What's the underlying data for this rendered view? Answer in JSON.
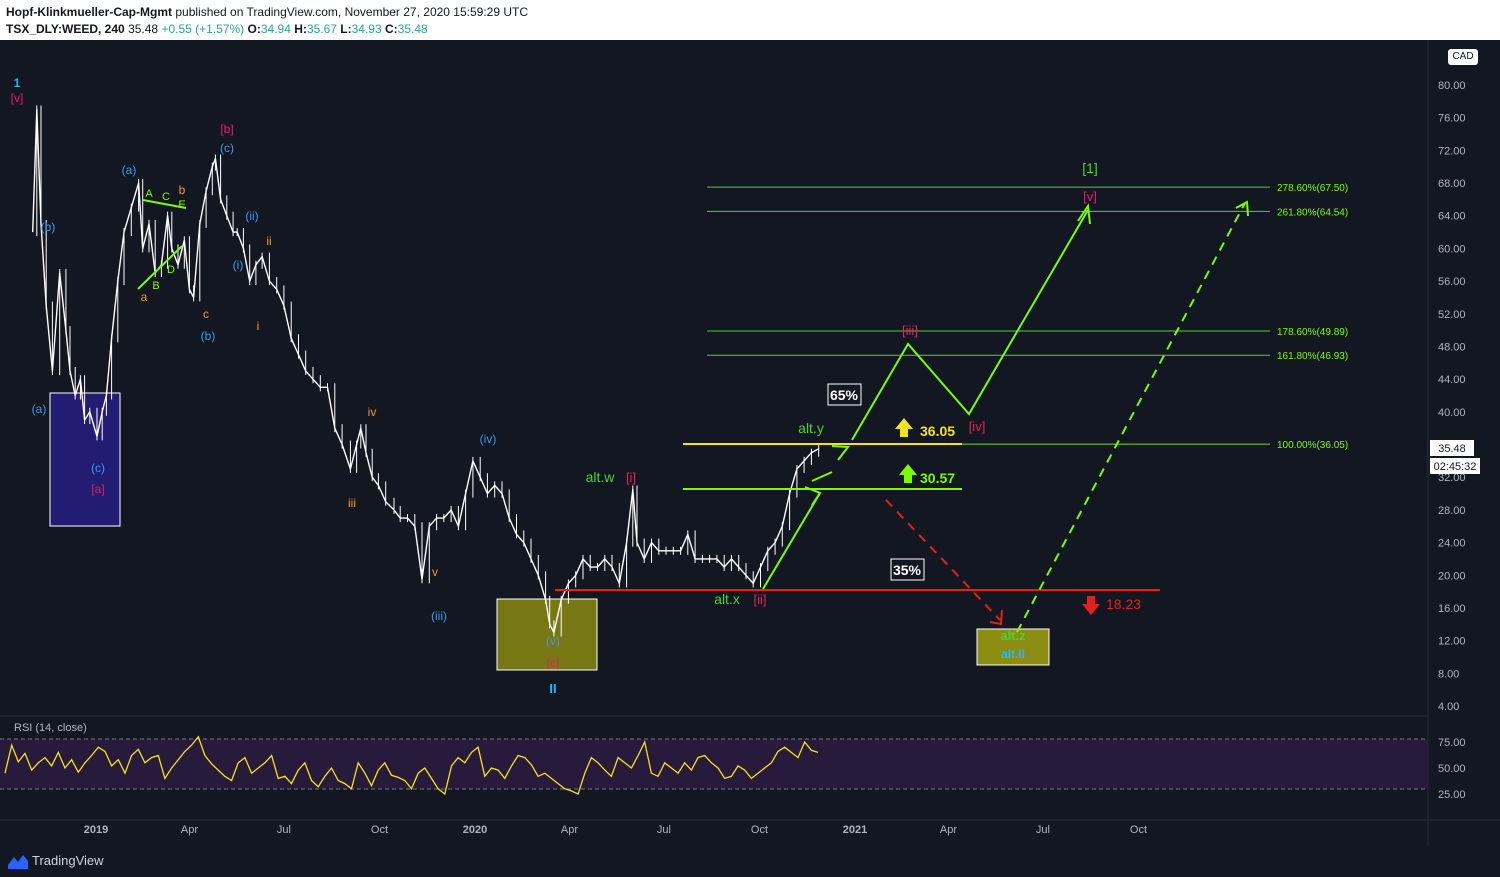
{
  "header": {
    "publisher": "Hopf-Klinkmueller-Cap-Mgmt",
    "published_text": "published on TradingView.com, November 27, 2020 15:59:29 UTC",
    "symbol": "TSX_DLY:WEED, 240",
    "last": "35.48",
    "change": "+0.55 (+1.57%)",
    "o_label": "O:",
    "o": "34.94",
    "h_label": "H:",
    "h": "35.67",
    "l_label": "L:",
    "l": "34.93",
    "c_label": "C:",
    "c": "35.48"
  },
  "currency": "CAD",
  "footer": {
    "brand": "TradingView"
  },
  "colors": {
    "background": "#131722",
    "candle": "#ffffff",
    "fib": "#4cd137",
    "green": "#7cfc00",
    "yellow": "#f5e21b",
    "red": "#e3201b",
    "pink": "#e91e63",
    "blue": "#3d9bf0",
    "orange": "#f39c12",
    "cyan": "#29b6f6"
  },
  "chart_data": {
    "type": "line",
    "title": "",
    "y_axis": {
      "min": 4,
      "max": 84,
      "unit": "CAD",
      "ticks": [
        "80.00",
        "76.00",
        "72.00",
        "68.00",
        "64.00",
        "60.00",
        "56.00",
        "52.00",
        "48.00",
        "44.00",
        "40.00",
        "36.00",
        "32.00",
        "28.00",
        "24.00",
        "20.00",
        "16.00",
        "12.00",
        "8.00",
        "4.00"
      ]
    },
    "x_axis": {
      "ticks": [
        "2019",
        "Apr",
        "Jul",
        "Oct",
        "2020",
        "Apr",
        "Jul",
        "Oct",
        "2021",
        "Apr",
        "Jul",
        "Oct"
      ]
    },
    "series": [
      {
        "points": [
          [
            "2018-11-01",
            62
          ],
          [
            "2018-11-05",
            77
          ],
          [
            "2018-11-09",
            63
          ],
          [
            "2018-11-14",
            53
          ],
          [
            "2018-11-20",
            45
          ],
          [
            "2018-11-27",
            57
          ],
          [
            "2018-12-03",
            50
          ],
          [
            "2018-12-07",
            45
          ],
          [
            "2018-12-12",
            42
          ],
          [
            "2018-12-17",
            44
          ],
          [
            "2018-12-21",
            39
          ],
          [
            "2018-12-26",
            40
          ],
          [
            "2019-01-02",
            37
          ],
          [
            "2019-01-07",
            40
          ],
          [
            "2019-01-11",
            42
          ],
          [
            "2019-01-16",
            49
          ],
          [
            "2019-01-22",
            56
          ],
          [
            "2019-01-28",
            62
          ],
          [
            "2019-02-04",
            65
          ],
          [
            "2019-02-11",
            68
          ],
          [
            "2019-02-15",
            60
          ],
          [
            "2019-02-21",
            63
          ],
          [
            "2019-02-27",
            57
          ],
          [
            "2019-03-05",
            58
          ],
          [
            "2019-03-11",
            64
          ],
          [
            "2019-03-15",
            60
          ],
          [
            "2019-03-21",
            58
          ],
          [
            "2019-03-27",
            61
          ],
          [
            "2019-04-01",
            55
          ],
          [
            "2019-04-05",
            54
          ],
          [
            "2019-04-11",
            63
          ],
          [
            "2019-04-17",
            67
          ],
          [
            "2019-04-23",
            70
          ],
          [
            "2019-04-26",
            71
          ],
          [
            "2019-05-01",
            66
          ],
          [
            "2019-05-07",
            64
          ],
          [
            "2019-05-13",
            62
          ],
          [
            "2019-05-17",
            62
          ],
          [
            "2019-05-23",
            60
          ],
          [
            "2019-05-29",
            56
          ],
          [
            "2019-06-04",
            58
          ],
          [
            "2019-06-10",
            59
          ],
          [
            "2019-06-17",
            56
          ],
          [
            "2019-06-24",
            55
          ],
          [
            "2019-07-01",
            53
          ],
          [
            "2019-07-08",
            49
          ],
          [
            "2019-07-15",
            47
          ],
          [
            "2019-07-22",
            45
          ],
          [
            "2019-07-29",
            44
          ],
          [
            "2019-08-05",
            43
          ],
          [
            "2019-08-12",
            43
          ],
          [
            "2019-08-19",
            38
          ],
          [
            "2019-08-26",
            36
          ],
          [
            "2019-09-03",
            33
          ],
          [
            "2019-09-09",
            36
          ],
          [
            "2019-09-13",
            38
          ],
          [
            "2019-09-18",
            35
          ],
          [
            "2019-09-24",
            32
          ],
          [
            "2019-09-30",
            31
          ],
          [
            "2019-10-07",
            29
          ],
          [
            "2019-10-15",
            28
          ],
          [
            "2019-10-21",
            27
          ],
          [
            "2019-10-28",
            27
          ],
          [
            "2019-11-04",
            26
          ],
          [
            "2019-11-11",
            19.5
          ],
          [
            "2019-11-18",
            26
          ],
          [
            "2019-11-25",
            27
          ],
          [
            "2019-12-02",
            27
          ],
          [
            "2019-12-09",
            28
          ],
          [
            "2019-12-16",
            26
          ],
          [
            "2019-12-23",
            30
          ],
          [
            "2019-12-30",
            34
          ],
          [
            "2020-01-06",
            32
          ],
          [
            "2020-01-13",
            30
          ],
          [
            "2020-01-20",
            31
          ],
          [
            "2020-01-27",
            30
          ],
          [
            "2020-02-03",
            27
          ],
          [
            "2020-02-10",
            25
          ],
          [
            "2020-02-17",
            24
          ],
          [
            "2020-02-24",
            22
          ],
          [
            "2020-03-02",
            20
          ],
          [
            "2020-03-09",
            17
          ],
          [
            "2020-03-13",
            14
          ],
          [
            "2020-03-17",
            13
          ],
          [
            "2020-03-24",
            17
          ],
          [
            "2020-03-31",
            19
          ],
          [
            "2020-04-07",
            20
          ],
          [
            "2020-04-14",
            22
          ],
          [
            "2020-04-21",
            21
          ],
          [
            "2020-04-28",
            21
          ],
          [
            "2020-05-05",
            22
          ],
          [
            "2020-05-12",
            21
          ],
          [
            "2020-05-19",
            19
          ],
          [
            "2020-05-26",
            24
          ],
          [
            "2020-06-01",
            30.5
          ],
          [
            "2020-06-05",
            24
          ],
          [
            "2020-06-12",
            22
          ],
          [
            "2020-06-19",
            24
          ],
          [
            "2020-06-26",
            23
          ],
          [
            "2020-07-03",
            23
          ],
          [
            "2020-07-10",
            23
          ],
          [
            "2020-07-17",
            23
          ],
          [
            "2020-07-24",
            25
          ],
          [
            "2020-07-31",
            22
          ],
          [
            "2020-08-07",
            22
          ],
          [
            "2020-08-14",
            22
          ],
          [
            "2020-08-21",
            22
          ],
          [
            "2020-08-28",
            21
          ],
          [
            "2020-09-04",
            22
          ],
          [
            "2020-09-11",
            21
          ],
          [
            "2020-09-18",
            20
          ],
          [
            "2020-09-25",
            19
          ],
          [
            "2020-10-02",
            21
          ],
          [
            "2020-10-09",
            23
          ],
          [
            "2020-10-16",
            24
          ],
          [
            "2020-10-23",
            26
          ],
          [
            "2020-10-30",
            30
          ],
          [
            "2020-11-06",
            33
          ],
          [
            "2020-11-13",
            34
          ],
          [
            "2020-11-20",
            35
          ],
          [
            "2020-11-27",
            35.48
          ]
        ]
      }
    ],
    "levels": [
      {
        "label": "278.60%(67.50)",
        "value": 67.5
      },
      {
        "label": "261.80%(64.54)",
        "value": 64.54
      },
      {
        "label": "178.60%(49.89)",
        "value": 49.89
      },
      {
        "label": "161.80%(46.93)",
        "value": 46.93
      },
      {
        "label": "100.00%(36.05)",
        "value": 36.05
      }
    ],
    "targets": {
      "upper": "36.05",
      "mid": "30.57",
      "lower": "18.23"
    },
    "probabilities": {
      "bull": "65%",
      "bear": "35%"
    },
    "wave_labels": {
      "w1": "1",
      "v_pink": "[v]",
      "a_blue": "(a)",
      "b_blue": "(b)",
      "c_blue": "(c)",
      "a_pink": "[a]",
      "b_pink": "[b]",
      "i_blue": "(i)",
      "ii_blue": "(ii)",
      "iii_blue": "(iii)",
      "iv_blue": "(iv)",
      "v_blue": "(v)",
      "i_o": "i",
      "ii_o": "ii",
      "iii_o": "iii",
      "iv_o": "iv",
      "v_o": "v",
      "a_o": "a",
      "b_o": "b",
      "c_o": "c",
      "A": "A",
      "B": "B",
      "C": "C",
      "D": "D",
      "E": "E",
      "II": "II",
      "c_pink": "[c]",
      "altw": "alt.w",
      "altx": "alt.x",
      "alty": "alt.y",
      "altz": "alt.z",
      "altII": "alt.II",
      "i_pink": "[i]",
      "ii_pink": "[ii]",
      "iii_pink": "[iii]",
      "iv_pink": "[iv]",
      "v_pink2": "[v]",
      "one_green": "[1]"
    },
    "price_badge": "35.48",
    "time_badge": "02:45:32",
    "rsi": {
      "title": "RSI (14, close)",
      "ticks": [
        "75.00",
        "50.00",
        "25.00"
      ],
      "bands": [
        70,
        30
      ],
      "values": [
        45,
        72,
        56,
        64,
        48,
        55,
        60,
        52,
        65,
        50,
        58,
        46,
        55,
        62,
        70,
        66,
        52,
        58,
        45,
        62,
        68,
        55,
        60,
        62,
        40,
        50,
        58,
        66,
        72,
        80,
        62,
        54,
        48,
        42,
        38,
        55,
        60,
        45,
        50,
        55,
        62,
        40,
        42,
        35,
        48,
        55,
        38,
        32,
        42,
        50,
        38,
        35,
        30,
        55,
        45,
        33,
        48,
        55,
        43,
        41,
        38,
        30,
        45,
        50,
        40,
        30,
        25,
        52,
        60,
        55,
        65,
        70,
        42,
        50,
        48,
        40,
        52,
        62,
        60,
        53,
        42,
        45,
        40,
        35,
        30,
        28,
        25,
        45,
        60,
        55,
        48,
        42,
        60,
        55,
        50,
        62,
        75,
        45,
        42,
        55,
        50,
        45,
        55,
        48,
        60,
        62,
        55,
        50,
        40,
        42,
        52,
        48,
        40,
        45,
        50,
        55,
        66,
        70,
        65,
        60,
        75,
        67,
        65
      ]
    }
  }
}
